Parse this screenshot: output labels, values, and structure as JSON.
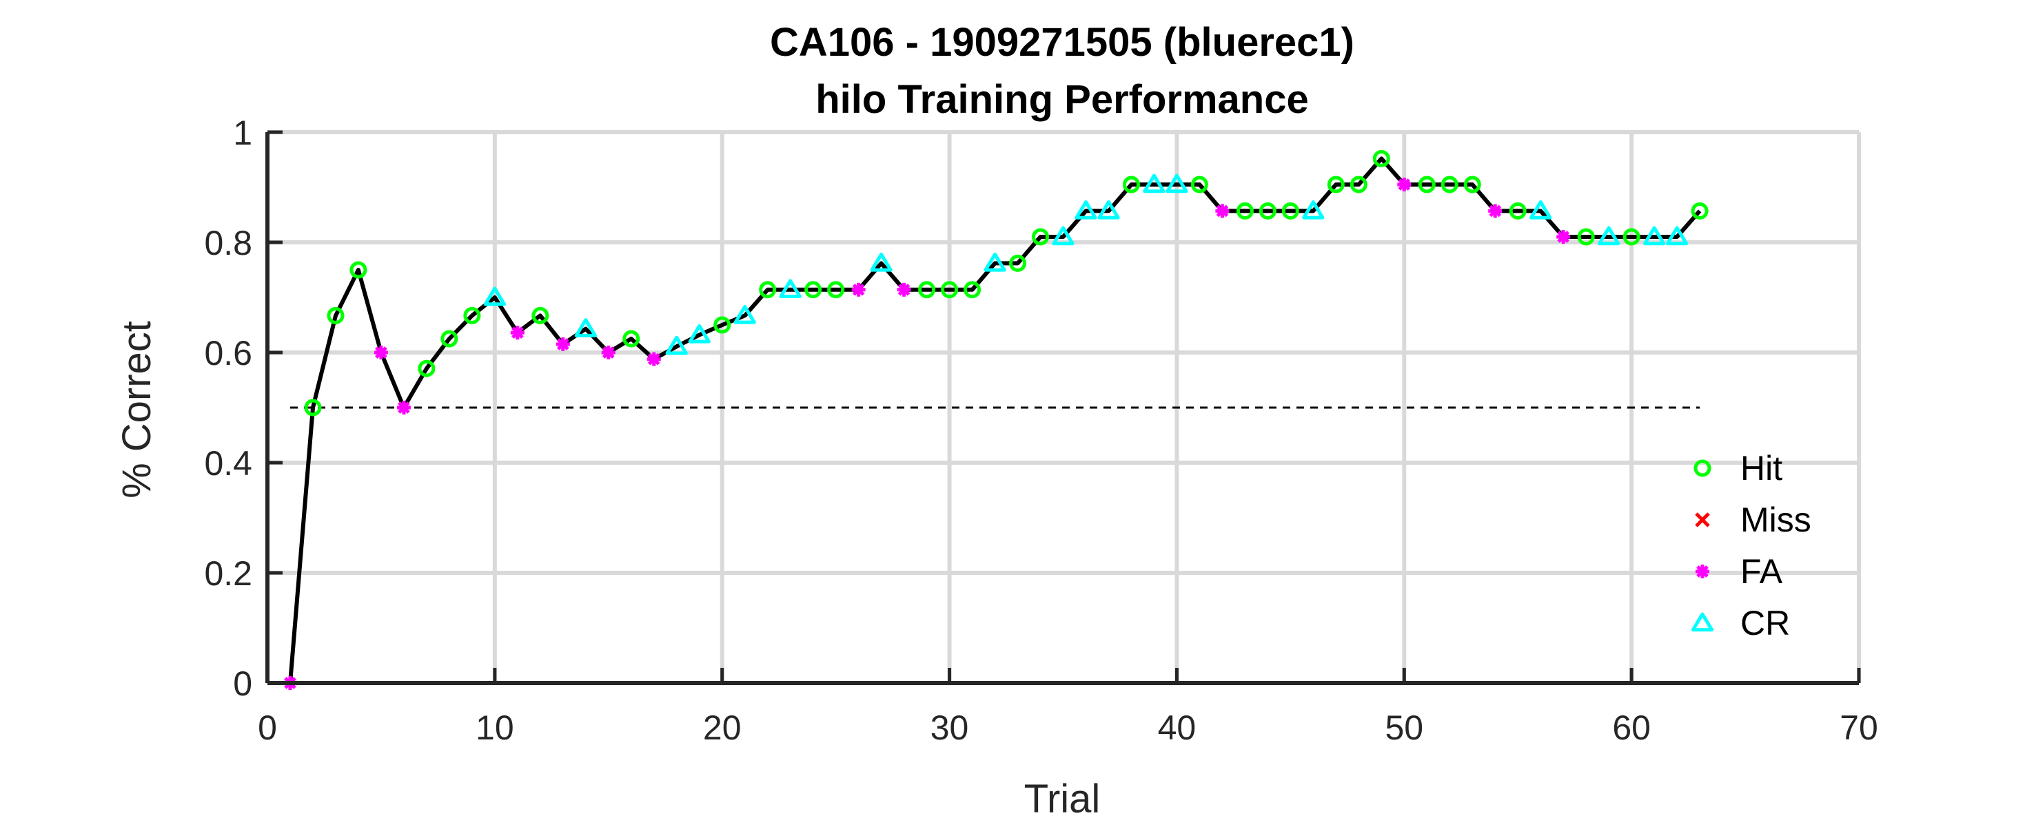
{
  "chart_data": {
    "type": "line",
    "title": "CA106 - 1909271505 (bluerec1)",
    "subtitle": "hilo Training Performance",
    "xlabel": "Trial",
    "ylabel": "% Correct",
    "xlim": [
      0,
      70
    ],
    "ylim": [
      0,
      1
    ],
    "xticks": [
      "0",
      "10",
      "20",
      "30",
      "40",
      "50",
      "60",
      "70"
    ],
    "yticks": [
      "0",
      "0.2",
      "0.4",
      "0.6",
      "0.8",
      "1"
    ],
    "grid": true,
    "chance_level": 0.5,
    "legend": {
      "placement": "bottom-right",
      "entries": [
        {
          "name": "Hit",
          "marker": "circle",
          "color": "#00ff00"
        },
        {
          "name": "Miss",
          "marker": "x",
          "color": "#ff0000"
        },
        {
          "name": "FA",
          "marker": "asterisk",
          "color": "#ff00ff"
        },
        {
          "name": "CR",
          "marker": "triangle",
          "color": "#00ffff"
        }
      ]
    },
    "line_color": "#000000",
    "points": [
      {
        "x": 1,
        "y": 0.0,
        "type": "FA"
      },
      {
        "x": 2,
        "y": 0.5,
        "type": "Hit"
      },
      {
        "x": 3,
        "y": 0.667,
        "type": "Hit"
      },
      {
        "x": 4,
        "y": 0.75,
        "type": "Hit"
      },
      {
        "x": 5,
        "y": 0.6,
        "type": "FA"
      },
      {
        "x": 6,
        "y": 0.5,
        "type": "FA"
      },
      {
        "x": 7,
        "y": 0.571,
        "type": "Hit"
      },
      {
        "x": 8,
        "y": 0.625,
        "type": "Hit"
      },
      {
        "x": 9,
        "y": 0.667,
        "type": "Hit"
      },
      {
        "x": 10,
        "y": 0.7,
        "type": "CR"
      },
      {
        "x": 11,
        "y": 0.636,
        "type": "FA"
      },
      {
        "x": 12,
        "y": 0.667,
        "type": "Hit"
      },
      {
        "x": 13,
        "y": 0.615,
        "type": "FA"
      },
      {
        "x": 14,
        "y": 0.643,
        "type": "CR"
      },
      {
        "x": 15,
        "y": 0.6,
        "type": "FA"
      },
      {
        "x": 16,
        "y": 0.625,
        "type": "Hit"
      },
      {
        "x": 17,
        "y": 0.588,
        "type": "FA"
      },
      {
        "x": 18,
        "y": 0.611,
        "type": "CR"
      },
      {
        "x": 19,
        "y": 0.632,
        "type": "CR"
      },
      {
        "x": 20,
        "y": 0.65,
        "type": "Hit"
      },
      {
        "x": 21,
        "y": 0.667,
        "type": "CR"
      },
      {
        "x": 22,
        "y": 0.714,
        "type": "Hit"
      },
      {
        "x": 23,
        "y": 0.714,
        "type": "CR"
      },
      {
        "x": 24,
        "y": 0.714,
        "type": "Hit"
      },
      {
        "x": 25,
        "y": 0.714,
        "type": "Hit"
      },
      {
        "x": 26,
        "y": 0.714,
        "type": "FA"
      },
      {
        "x": 27,
        "y": 0.762,
        "type": "CR"
      },
      {
        "x": 28,
        "y": 0.714,
        "type": "FA"
      },
      {
        "x": 29,
        "y": 0.714,
        "type": "Hit"
      },
      {
        "x": 30,
        "y": 0.714,
        "type": "Hit"
      },
      {
        "x": 31,
        "y": 0.714,
        "type": "Hit"
      },
      {
        "x": 32,
        "y": 0.762,
        "type": "CR"
      },
      {
        "x": 33,
        "y": 0.762,
        "type": "Hit"
      },
      {
        "x": 34,
        "y": 0.81,
        "type": "Hit"
      },
      {
        "x": 35,
        "y": 0.81,
        "type": "CR"
      },
      {
        "x": 36,
        "y": 0.857,
        "type": "CR"
      },
      {
        "x": 37,
        "y": 0.857,
        "type": "CR"
      },
      {
        "x": 38,
        "y": 0.905,
        "type": "Hit"
      },
      {
        "x": 39,
        "y": 0.905,
        "type": "CR"
      },
      {
        "x": 40,
        "y": 0.905,
        "type": "CR"
      },
      {
        "x": 41,
        "y": 0.905,
        "type": "Hit"
      },
      {
        "x": 42,
        "y": 0.857,
        "type": "FA"
      },
      {
        "x": 43,
        "y": 0.857,
        "type": "Hit"
      },
      {
        "x": 44,
        "y": 0.857,
        "type": "Hit"
      },
      {
        "x": 45,
        "y": 0.857,
        "type": "Hit"
      },
      {
        "x": 46,
        "y": 0.857,
        "type": "CR"
      },
      {
        "x": 47,
        "y": 0.905,
        "type": "Hit"
      },
      {
        "x": 48,
        "y": 0.905,
        "type": "Hit"
      },
      {
        "x": 49,
        "y": 0.952,
        "type": "Hit"
      },
      {
        "x": 50,
        "y": 0.905,
        "type": "FA"
      },
      {
        "x": 51,
        "y": 0.905,
        "type": "Hit"
      },
      {
        "x": 52,
        "y": 0.905,
        "type": "Hit"
      },
      {
        "x": 53,
        "y": 0.905,
        "type": "Hit"
      },
      {
        "x": 54,
        "y": 0.857,
        "type": "FA"
      },
      {
        "x": 55,
        "y": 0.857,
        "type": "Hit"
      },
      {
        "x": 56,
        "y": 0.857,
        "type": "CR"
      },
      {
        "x": 57,
        "y": 0.81,
        "type": "FA"
      },
      {
        "x": 58,
        "y": 0.81,
        "type": "Hit"
      },
      {
        "x": 59,
        "y": 0.81,
        "type": "CR"
      },
      {
        "x": 60,
        "y": 0.81,
        "type": "Hit"
      },
      {
        "x": 61,
        "y": 0.81,
        "type": "CR"
      },
      {
        "x": 62,
        "y": 0.81,
        "type": "CR"
      },
      {
        "x": 63,
        "y": 0.857,
        "type": "Hit"
      }
    ]
  }
}
